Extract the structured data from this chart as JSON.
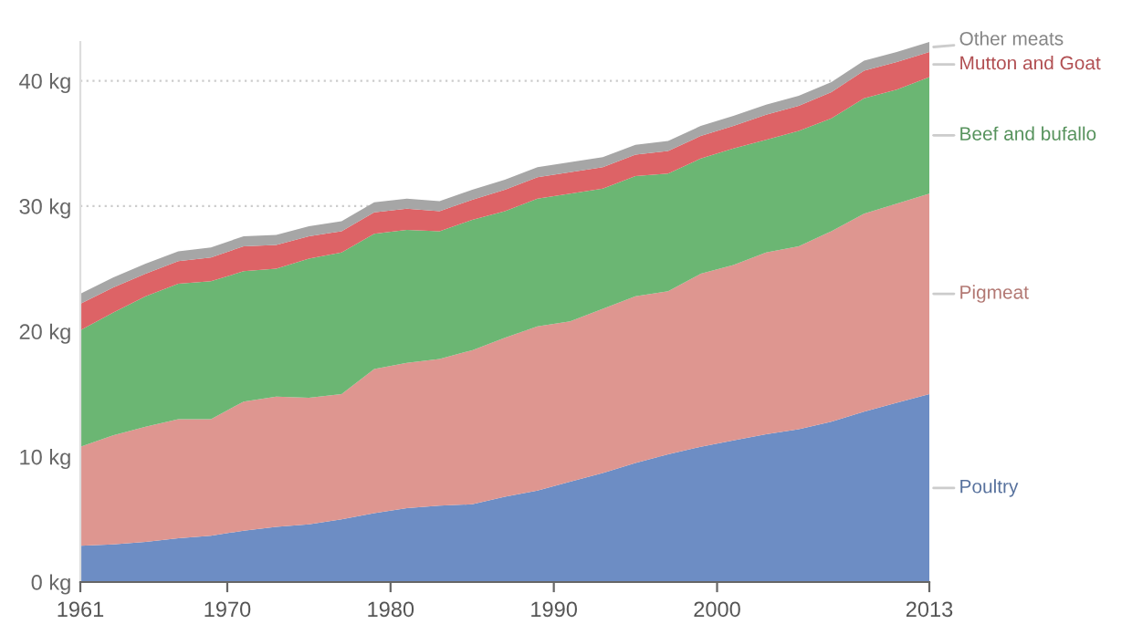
{
  "chart_data": {
    "type": "area",
    "stacked": true,
    "x": [
      1961,
      1963,
      1965,
      1967,
      1969,
      1971,
      1973,
      1975,
      1977,
      1979,
      1981,
      1983,
      1985,
      1987,
      1989,
      1991,
      1993,
      1995,
      1997,
      1999,
      2001,
      2003,
      2005,
      2007,
      2009,
      2011,
      2013
    ],
    "series": [
      {
        "name": "Poultry",
        "color": "#6d8dc4",
        "values": [
          2.9,
          3.0,
          3.2,
          3.5,
          3.7,
          4.1,
          4.4,
          4.6,
          5.0,
          5.5,
          5.9,
          6.1,
          6.2,
          6.8,
          7.3,
          8.0,
          8.7,
          9.5,
          10.2,
          10.8,
          11.3,
          11.8,
          12.2,
          12.8,
          13.6,
          14.3,
          15.0
        ]
      },
      {
        "name": "Pigmeat",
        "color": "#de9690",
        "values": [
          7.9,
          8.7,
          9.2,
          9.5,
          9.3,
          10.3,
          10.4,
          10.1,
          10.0,
          11.5,
          11.6,
          11.7,
          12.3,
          12.7,
          13.1,
          12.8,
          13.1,
          13.3,
          13.0,
          13.8,
          14.0,
          14.5,
          14.6,
          15.2,
          15.8,
          15.9,
          16.0
        ]
      },
      {
        "name": "Beef and bufallo",
        "color": "#6bb673",
        "values": [
          9.3,
          9.8,
          10.4,
          10.8,
          11.0,
          10.4,
          10.2,
          11.1,
          11.3,
          10.8,
          10.6,
          10.2,
          10.4,
          10.1,
          10.2,
          10.2,
          9.6,
          9.6,
          9.4,
          9.2,
          9.3,
          9.0,
          9.2,
          9.0,
          9.2,
          9.1,
          9.3
        ]
      },
      {
        "name": "Mutton and Goat",
        "color": "#dd6366",
        "values": [
          2.1,
          2.0,
          1.8,
          1.8,
          1.9,
          2.0,
          1.9,
          1.8,
          1.7,
          1.7,
          1.7,
          1.6,
          1.6,
          1.7,
          1.7,
          1.7,
          1.7,
          1.7,
          1.8,
          1.8,
          1.8,
          2.0,
          2.0,
          2.1,
          2.2,
          2.2,
          2.0
        ]
      },
      {
        "name": "Other meats",
        "color": "#a6a6a6",
        "values": [
          0.8,
          0.8,
          0.8,
          0.8,
          0.8,
          0.8,
          0.8,
          0.8,
          0.8,
          0.8,
          0.8,
          0.8,
          0.8,
          0.8,
          0.8,
          0.8,
          0.8,
          0.8,
          0.8,
          0.8,
          0.8,
          0.8,
          0.8,
          0.8,
          0.8,
          0.8,
          0.8
        ]
      }
    ],
    "xlim": [
      1961,
      2013
    ],
    "xticks": [
      1961,
      1970,
      1980,
      1990,
      2000,
      2013
    ],
    "yticks": [
      {
        "value": 0,
        "label": "0 kg"
      },
      {
        "value": 10,
        "label": "10 kg"
      },
      {
        "value": 20,
        "label": "20 kg"
      },
      {
        "value": 30,
        "label": "30 kg"
      },
      {
        "value": 40,
        "label": "40 kg"
      }
    ],
    "ylim": [
      0,
      43.1
    ],
    "grid": "y",
    "legend": "right"
  }
}
